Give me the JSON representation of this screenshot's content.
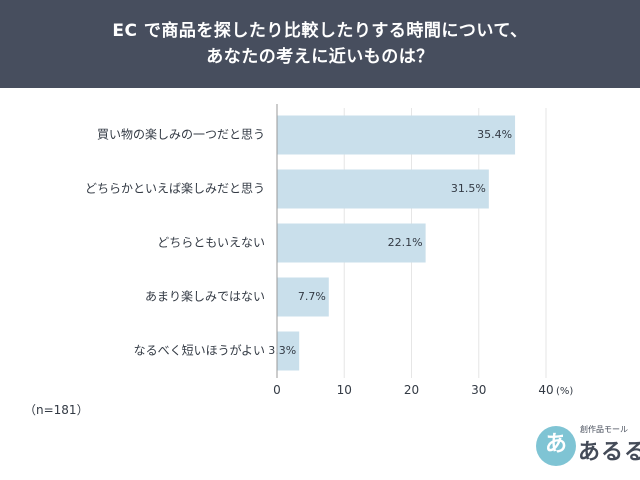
{
  "header": {
    "title_line1": "EC で商品を探したり比較したりする時間について、",
    "title_line2": "あなたの考えに近いものは？"
  },
  "note": "（n=181）",
  "logo": {
    "badge": "あ",
    "sub": "創作品モール",
    "main": "あるる"
  },
  "colors": {
    "header_bg": "#474e5e",
    "bar": "#c9dfeb",
    "axis": "#999999"
  },
  "chart_data": {
    "type": "bar",
    "orientation": "horizontal",
    "title": "EC で商品を探したり比較したりする時間について、あなたの考えに近いものは？",
    "categories": [
      "買い物の楽しみの一つだと思う",
      "どちらかといえば楽しみだと思う",
      "どちらともいえない",
      "あまり楽しみではない",
      "なるべく短いほうがよい"
    ],
    "values": [
      35.4,
      31.5,
      22.1,
      7.7,
      3.3
    ],
    "value_labels": [
      "35.4%",
      "31.5%",
      "22.1%",
      "7.7%",
      "3.3%"
    ],
    "xlim": [
      0,
      40
    ],
    "xticks": [
      0,
      10,
      20,
      30,
      40
    ],
    "xtick_labels": [
      "0",
      "10",
      "20",
      "30",
      "40"
    ],
    "unit": "(%)",
    "grid": true,
    "legend": "none"
  }
}
